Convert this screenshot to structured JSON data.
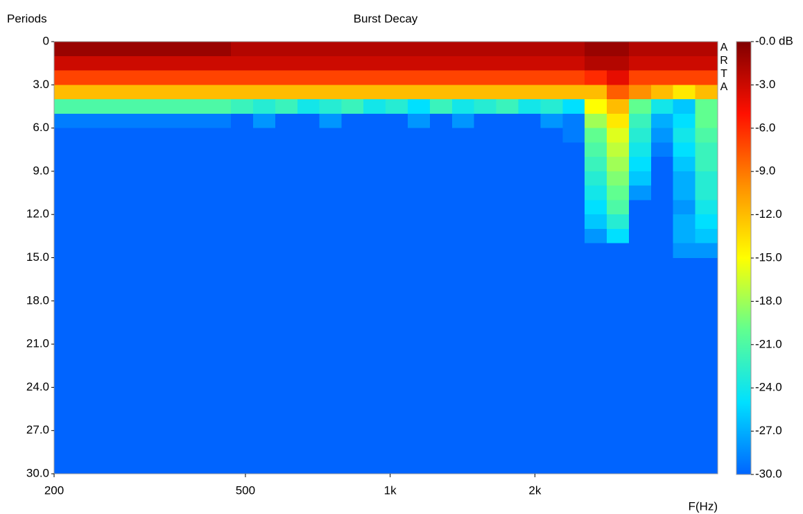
{
  "chart_data": {
    "type": "heatmap",
    "title": "Burst Decay",
    "y_label": "Periods",
    "x_label": "F(Hz)",
    "watermark": "ARTA",
    "x_log": true,
    "xlim": [
      200,
      4800
    ],
    "xticks": [
      200,
      500,
      {
        "value": 1000,
        "label": "1k"
      },
      {
        "value": 2000,
        "label": "2k"
      }
    ],
    "ylim": [
      0,
      30
    ],
    "yticks": [
      0,
      {
        "value": 3,
        "label": "3.0"
      },
      {
        "value": 6,
        "label": "6.0"
      },
      {
        "value": 9,
        "label": "9.0"
      },
      {
        "value": 12,
        "label": "12.0"
      },
      {
        "value": 15,
        "label": "15.0"
      },
      {
        "value": 18,
        "label": "18.0"
      },
      {
        "value": 21,
        "label": "21.0"
      },
      {
        "value": 24,
        "label": "24.0"
      },
      {
        "value": 27,
        "label": "27.0"
      },
      {
        "value": 30,
        "label": "30.0"
      }
    ],
    "zlim": [
      -30,
      0
    ],
    "zticks": [
      {
        "value": 0,
        "label": "-0.0 dB"
      },
      {
        "value": -3,
        "label": "-3.0"
      },
      {
        "value": -6,
        "label": "-6.0"
      },
      {
        "value": -9,
        "label": "-9.0"
      },
      {
        "value": -12,
        "label": "-12.0"
      },
      {
        "value": -15,
        "label": "-15.0"
      },
      {
        "value": -18,
        "label": "-18.0"
      },
      {
        "value": -21,
        "label": "-21.0"
      },
      {
        "value": -24,
        "label": "-24.0"
      },
      {
        "value": -27,
        "label": "-27.0"
      },
      {
        "value": -30,
        "label": "-30.0"
      }
    ],
    "colormap": [
      "#0064ff",
      "#00e0ff",
      "#60ff90",
      "#ffff00",
      "#ff9000",
      "#ff1000",
      "#800000"
    ],
    "x": [
      211,
      234,
      261,
      290,
      322,
      358,
      398,
      442,
      492,
      547,
      608,
      676,
      751,
      835,
      928,
      1032,
      1147,
      1275,
      1418,
      1576,
      1752,
      1948,
      2166,
      2408,
      2677,
      2976,
      3308,
      3677,
      4088,
      4545
    ],
    "y": [
      0.5,
      1.5,
      2.5,
      3.5,
      4.5,
      5.5,
      6.5,
      7.5,
      8.5,
      9.5,
      10.5,
      11.5,
      12.5,
      13.5,
      14.5
    ],
    "z": [
      [
        -1,
        -1,
        -1,
        -1,
        -1,
        -1,
        -1,
        -1,
        -2,
        -2,
        -2,
        -2,
        -2,
        -2,
        -2,
        -2,
        -2,
        -2,
        -2,
        -2,
        -2,
        -2,
        -2,
        -2,
        -1,
        -1,
        -2,
        -2,
        -2,
        -2
      ],
      [
        -3,
        -3,
        -3,
        -3,
        -3,
        -3,
        -3,
        -3,
        -3,
        -3,
        -3,
        -3,
        -3,
        -3,
        -3,
        -3,
        -3,
        -3,
        -3,
        -3,
        -3,
        -3,
        -3,
        -3,
        -2,
        -2,
        -3,
        -3,
        -3,
        -3
      ],
      [
        -7,
        -7,
        -7,
        -7,
        -7,
        -7,
        -7,
        -7,
        -7,
        -7,
        -7,
        -7,
        -7,
        -7,
        -7,
        -7,
        -7,
        -7,
        -7,
        -7,
        -7,
        -7,
        -7,
        -7,
        -6,
        -4,
        -7,
        -7,
        -7,
        -7
      ],
      [
        -12,
        -12,
        -12,
        -12,
        -12,
        -12,
        -12,
        -12,
        -12,
        -12,
        -12,
        -12,
        -12,
        -12,
        -12,
        -12,
        -12,
        -12,
        -12,
        -12,
        -12,
        -12,
        -12,
        -12,
        -12,
        -8,
        -10,
        -12,
        -14,
        -12
      ],
      [
        -21,
        -21,
        -21,
        -21,
        -21,
        -21,
        -21,
        -21,
        -22,
        -23,
        -22,
        -24,
        -23,
        -22,
        -24,
        -23,
        -25,
        -22,
        -24,
        -23,
        -22,
        -24,
        -23,
        -25,
        -15,
        -12,
        -20,
        -24,
        -26,
        -20
      ],
      [
        -29,
        -29,
        -29,
        -29,
        -29,
        -29,
        -29,
        -29,
        -30,
        -28,
        -30,
        -30,
        -28,
        -30,
        -30,
        -30,
        -28,
        -30,
        -28,
        -30,
        -30,
        -30,
        -28,
        -29,
        -18,
        -14,
        -22,
        -27,
        -25,
        -20
      ],
      [
        -30,
        -30,
        -30,
        -30,
        -30,
        -30,
        -30,
        -30,
        -30,
        -30,
        -30,
        -30,
        -30,
        -30,
        -30,
        -30,
        -30,
        -30,
        -30,
        -30,
        -30,
        -30,
        -30,
        -29,
        -20,
        -16,
        -23,
        -28,
        -24,
        -21
      ],
      [
        -30,
        -30,
        -30,
        -30,
        -30,
        -30,
        -30,
        -30,
        -30,
        -30,
        -30,
        -30,
        -30,
        -30,
        -30,
        -30,
        -30,
        -30,
        -30,
        -30,
        -30,
        -30,
        -30,
        -30,
        -21,
        -17,
        -24,
        -29,
        -25,
        -22
      ],
      [
        -30,
        -30,
        -30,
        -30,
        -30,
        -30,
        -30,
        -30,
        -30,
        -30,
        -30,
        -30,
        -30,
        -30,
        -30,
        -30,
        -30,
        -30,
        -30,
        -30,
        -30,
        -30,
        -30,
        -30,
        -22,
        -18,
        -25,
        -30,
        -26,
        -22
      ],
      [
        -30,
        -30,
        -30,
        -30,
        -30,
        -30,
        -30,
        -30,
        -30,
        -30,
        -30,
        -30,
        -30,
        -30,
        -30,
        -30,
        -30,
        -30,
        -30,
        -30,
        -30,
        -30,
        -30,
        -30,
        -23,
        -19,
        -26,
        -30,
        -27,
        -23
      ],
      [
        -30,
        -30,
        -30,
        -30,
        -30,
        -30,
        -30,
        -30,
        -30,
        -30,
        -30,
        -30,
        -30,
        -30,
        -30,
        -30,
        -30,
        -30,
        -30,
        -30,
        -30,
        -30,
        -30,
        -30,
        -24,
        -20,
        -28,
        -30,
        -27,
        -23
      ],
      [
        -30,
        -30,
        -30,
        -30,
        -30,
        -30,
        -30,
        -30,
        -30,
        -30,
        -30,
        -30,
        -30,
        -30,
        -30,
        -30,
        -30,
        -30,
        -30,
        -30,
        -30,
        -30,
        -30,
        -30,
        -25,
        -21,
        -30,
        -30,
        -28,
        -24
      ],
      [
        -30,
        -30,
        -30,
        -30,
        -30,
        -30,
        -30,
        -30,
        -30,
        -30,
        -30,
        -30,
        -30,
        -30,
        -30,
        -30,
        -30,
        -30,
        -30,
        -30,
        -30,
        -30,
        -30,
        -30,
        -26,
        -23,
        -30,
        -30,
        -27,
        -25
      ],
      [
        -30,
        -30,
        -30,
        -30,
        -30,
        -30,
        -30,
        -30,
        -30,
        -30,
        -30,
        -30,
        -30,
        -30,
        -30,
        -30,
        -30,
        -30,
        -30,
        -30,
        -30,
        -30,
        -30,
        -30,
        -28,
        -25,
        -30,
        -30,
        -27,
        -26
      ],
      [
        -30,
        -30,
        -30,
        -30,
        -30,
        -30,
        -30,
        -30,
        -30,
        -30,
        -30,
        -30,
        -30,
        -30,
        -30,
        -30,
        -30,
        -30,
        -30,
        -30,
        -30,
        -30,
        -30,
        -30,
        -30,
        -30,
        -30,
        -30,
        -28,
        -28
      ]
    ]
  }
}
